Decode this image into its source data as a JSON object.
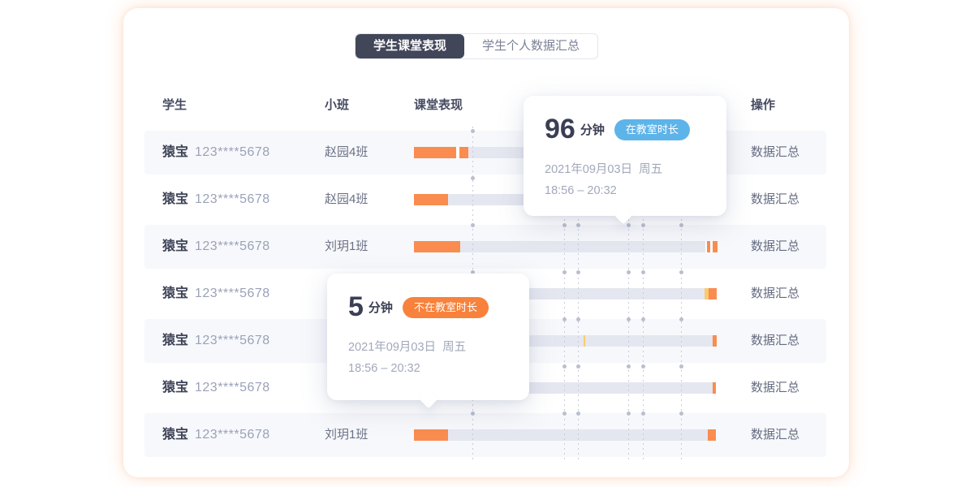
{
  "tabs": [
    {
      "label": "学生课堂表现",
      "active": true
    },
    {
      "label": "学生个人数据汇总",
      "active": false
    }
  ],
  "table": {
    "headers": [
      "学生",
      "小班",
      "课堂表现",
      "操作"
    ],
    "rows": [
      {
        "name": "猿宝",
        "phone": "123****5678",
        "klass": "赵园4班",
        "action": "数据汇总",
        "bar": [
          [
            "o",
            52
          ],
          [
            "g",
            4
          ],
          [
            "o",
            11
          ],
          [
            "t",
            307
          ]
        ]
      },
      {
        "name": "猿宝",
        "phone": "123****5678",
        "klass": "赵园4班",
        "action": "数据汇总",
        "bar": [
          [
            "o",
            42
          ],
          [
            "t",
            332
          ]
        ]
      },
      {
        "name": "猿宝",
        "phone": "123****5678",
        "klass": "刘玥1班",
        "action": "数据汇总",
        "bar": [
          [
            "o",
            57
          ],
          [
            "t",
            302
          ],
          [
            "g",
            2
          ],
          [
            "o",
            4
          ],
          [
            "g",
            3
          ],
          [
            "o",
            6
          ]
        ]
      },
      {
        "name": "猿宝",
        "phone": "123****5678",
        "klass": "",
        "action": "数据汇总",
        "bar": [
          [
            "t",
            358
          ],
          [
            "y",
            5
          ],
          [
            "o",
            10
          ]
        ]
      },
      {
        "name": "猿宝",
        "phone": "123****5678",
        "klass": "",
        "action": "数据汇总",
        "bar": [
          [
            "t",
            209
          ],
          [
            "y",
            2
          ],
          [
            "t",
            157
          ],
          [
            "o",
            5
          ]
        ]
      },
      {
        "name": "猿宝",
        "phone": "123****5678",
        "klass": "",
        "action": "数据汇总",
        "bar": [
          [
            "t",
            368
          ],
          [
            "o",
            4
          ]
        ]
      },
      {
        "name": "猿宝",
        "phone": "123****5678",
        "klass": "刘玥1班",
        "action": "数据汇总",
        "bar": [
          [
            "o",
            42
          ],
          [
            "t",
            320
          ],
          [
            "o",
            10
          ]
        ]
      }
    ]
  },
  "tooltips": [
    {
      "value": "96",
      "unit": "分钟",
      "badge": "在教室时长",
      "date": "2021年09月03日  周五",
      "time": "18:56 – 20:32"
    },
    {
      "value": "5",
      "unit": "分钟",
      "badge": "不在教室时长",
      "date": "2021年09月03日  周五",
      "time": "18:56 – 20:32"
    }
  ],
  "colors": {
    "bar_orange": "#FA8C50",
    "bar_yellow": "#F9CB72",
    "bar_track": "#E5E7F0",
    "bar_gap": "#FFFFFF",
    "badge_blue": "#5DB4E9",
    "badge_orange": "#F8823C",
    "tab_active_bg": "#414659"
  },
  "guides": {
    "x": [
      430,
      543,
      560,
      622,
      640,
      687
    ]
  }
}
